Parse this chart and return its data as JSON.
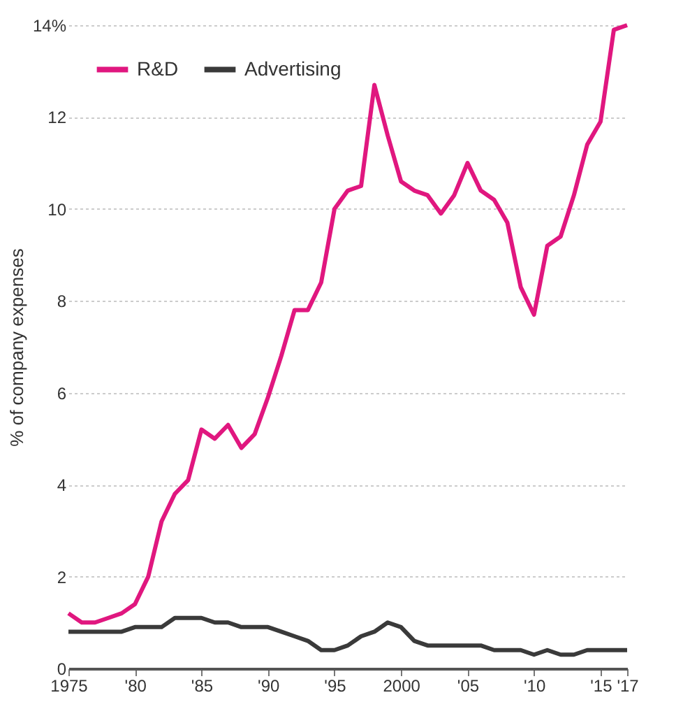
{
  "chart_data": {
    "type": "line",
    "ylabel": "% of company expenses",
    "x": [
      1975,
      1976,
      1977,
      1978,
      1979,
      1980,
      1981,
      1982,
      1983,
      1984,
      1985,
      1986,
      1987,
      1988,
      1989,
      1990,
      1991,
      1992,
      1993,
      1994,
      1995,
      1996,
      1997,
      1998,
      1999,
      2000,
      2001,
      2002,
      2003,
      2004,
      2005,
      2006,
      2007,
      2008,
      2009,
      2010,
      2011,
      2012,
      2013,
      2014,
      2015,
      2016,
      2017
    ],
    "series": [
      {
        "name": "R&D",
        "color": "#e0177f",
        "values": [
          1.2,
          1.0,
          1.0,
          1.1,
          1.2,
          1.4,
          2.0,
          3.2,
          3.8,
          4.1,
          5.2,
          5.0,
          5.3,
          4.8,
          5.1,
          5.9,
          6.8,
          7.8,
          7.8,
          8.4,
          10.0,
          10.4,
          10.5,
          12.7,
          11.6,
          10.6,
          10.4,
          10.3,
          9.9,
          10.3,
          11.0,
          10.4,
          10.2,
          9.7,
          8.3,
          7.7,
          9.2,
          9.4,
          10.3,
          11.4,
          11.9,
          13.9,
          14.0
        ]
      },
      {
        "name": "Advertising",
        "color": "#3a3a3a",
        "values": [
          0.8,
          0.8,
          0.8,
          0.8,
          0.8,
          0.9,
          0.9,
          0.9,
          1.1,
          1.1,
          1.1,
          1.0,
          1.0,
          0.9,
          0.9,
          0.9,
          0.8,
          0.7,
          0.6,
          0.4,
          0.4,
          0.5,
          0.7,
          0.8,
          1.0,
          0.9,
          0.6,
          0.5,
          0.5,
          0.5,
          0.5,
          0.5,
          0.4,
          0.4,
          0.4,
          0.3,
          0.4,
          0.3,
          0.3,
          0.4,
          0.4,
          0.4,
          0.4
        ]
      }
    ],
    "xlim": [
      1975,
      2017
    ],
    "xticks": [
      1975,
      {
        "value": 1980,
        "label": "'80"
      },
      {
        "value": 1985,
        "label": "'85"
      },
      {
        "value": 1990,
        "label": "'90"
      },
      {
        "value": 1995,
        "label": "'95"
      },
      2000,
      {
        "value": 2005,
        "label": "'05"
      },
      {
        "value": 2010,
        "label": "'10"
      },
      {
        "value": 2015,
        "label": "'15"
      },
      {
        "value": 2017,
        "label": "'17"
      }
    ],
    "ylim": [
      0,
      14
    ],
    "yticks": [
      0,
      2,
      4,
      6,
      8,
      10,
      12,
      {
        "value": 14,
        "label": "14%"
      }
    ],
    "grid": "y",
    "legend": "top left",
    "line_style": "solid"
  }
}
